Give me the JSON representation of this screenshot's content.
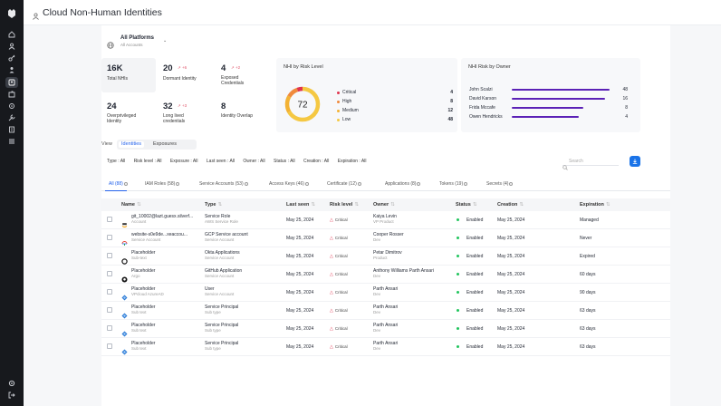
{
  "app": {
    "title": "Cloud Non-Human Identities"
  },
  "platform": {
    "name": "All Platforms",
    "sub": "All Accounts"
  },
  "stats": [
    {
      "value": "16K",
      "label": "Total NHIs",
      "trend": ""
    },
    {
      "value": "20",
      "label": "Dormant Identity",
      "trend": "+6"
    },
    {
      "value": "4",
      "label": "Exposed Credentials",
      "trend": "+2"
    },
    {
      "value": "24",
      "label": "Overprivileged Identity",
      "trend": ""
    },
    {
      "value": "32",
      "label": "Long lived credentials",
      "trend": "+3"
    },
    {
      "value": "8",
      "label": "Identity Overlap",
      "trend": ""
    }
  ],
  "risk_chart": {
    "title": "NHI by Risk Level",
    "center_value": "72",
    "levels": [
      {
        "label": "Critical",
        "value": "4",
        "color": "#e0344e"
      },
      {
        "label": "High",
        "value": "8",
        "color": "#f08a3c"
      },
      {
        "label": "Medium",
        "value": "12",
        "color": "#f3b234"
      },
      {
        "label": "Low",
        "value": "48",
        "color": "#f5c842"
      }
    ]
  },
  "owner_chart": {
    "title": "NHI Risk by Owner",
    "owners": [
      {
        "name": "John Scalzi",
        "value": "48"
      },
      {
        "name": "David Karson",
        "value": "16"
      },
      {
        "name": "Frida Mccafe",
        "value": "8"
      },
      {
        "name": "Owen Hendricks",
        "value": "4"
      }
    ]
  },
  "view": {
    "label": "View",
    "options": [
      "Identities",
      "Exposures"
    ]
  },
  "filters": [
    "Type : All",
    "Risk level : All",
    "Exposure : All",
    "Last seen : All",
    "Owner : All",
    "Status : All",
    "Creation : All",
    "Expiration : All"
  ],
  "search": {
    "placeholder": "Search"
  },
  "tabs": [
    "All (88)",
    "IAM Roles (58)",
    "Service Accounts (53)",
    "Access Keys (46)",
    "Certificate (12)",
    "Applications (8)",
    "Tokens (19)",
    "Secrets (4)"
  ],
  "table": {
    "columns": [
      "Name",
      "Type",
      "Last seen",
      "Risk level",
      "Owner",
      "Status",
      "Creation",
      "Expiration"
    ],
    "rows": [
      {
        "icon": "aws-icon",
        "name": "git_10002@lazt.guesx.silverf...",
        "name_sub": "Account",
        "type": "Service Role",
        "type_sub": "AWS Service Role",
        "last_seen": "May 25, 2024",
        "risk": "Critical",
        "owner": "Kaiya Levin",
        "owner_sub": "VP Product",
        "status": "Enabled",
        "creation": "May 25, 2024",
        "expiration": "Managed"
      },
      {
        "icon": "gcp-icon",
        "name": "website-s0e9de...xeaccou...",
        "name_sub": "Service Account",
        "type": "GCP Service account",
        "type_sub": "Service Account",
        "last_seen": "May 25, 2024",
        "risk": "Critical",
        "owner": "Cooper Rosser",
        "owner_sub": "Dev",
        "status": "Enabled",
        "creation": "May 25, 2024",
        "expiration": "Never"
      },
      {
        "icon": "okta-icon",
        "name": "Placeholder",
        "name_sub": "Sub-text",
        "type": "Okta Applications",
        "type_sub": "Service Account",
        "last_seen": "May 25, 2024",
        "risk": "Critical",
        "owner": "Petar Dimitrov",
        "owner_sub": "Product",
        "status": "Enabled",
        "creation": "May 25, 2024",
        "expiration": "Expired"
      },
      {
        "icon": "github-icon",
        "name": "Placeholder",
        "name_sub": "Argo",
        "type": "GitHub Application",
        "type_sub": "Service Account",
        "last_seen": "May 25, 2024",
        "risk": "Critical",
        "owner": "Anthony Williams Parth Ansari",
        "owner_sub": "Dev",
        "status": "Enabled",
        "creation": "May 25, 2024",
        "expiration": "60 days"
      },
      {
        "icon": "azure-icon",
        "name": "Placeholder",
        "name_sub": "VPcloud AzureAD",
        "type": "User",
        "type_sub": "Service Account",
        "last_seen": "May 25, 2024",
        "risk": "Critical",
        "owner": "Parth Ansari",
        "owner_sub": "Dev",
        "status": "Enabled",
        "creation": "May 25, 2024",
        "expiration": "90 days"
      },
      {
        "icon": "azure-icon",
        "name": "Placeholder",
        "name_sub": "Sub text",
        "type": "Service Principal",
        "type_sub": "Sub type",
        "last_seen": "May 25, 2024",
        "risk": "Critical",
        "owner": "Parth Ansari",
        "owner_sub": "Dev",
        "status": "Enabled",
        "creation": "May 25, 2024",
        "expiration": "63 days"
      },
      {
        "icon": "azure-icon",
        "name": "Placeholder",
        "name_sub": "Sub text",
        "type": "Service Principal",
        "type_sub": "Sub type",
        "last_seen": "May 25, 2024",
        "risk": "Critical",
        "owner": "Parth Ansari",
        "owner_sub": "Dev",
        "status": "Enabled",
        "creation": "May 25, 2024",
        "expiration": "63 days"
      },
      {
        "icon": "azure-icon",
        "name": "Placeholder",
        "name_sub": "Sub text",
        "type": "Service Principal",
        "type_sub": "Sub type",
        "last_seen": "May 25, 2024",
        "risk": "Critical",
        "owner": "Parth Ansari",
        "owner_sub": "Dev",
        "status": "Enabled",
        "creation": "May 25, 2024",
        "expiration": "63 days"
      }
    ]
  },
  "colors": {
    "accent": "#2563eb",
    "sidebar": "#17191d",
    "bar": "#5b21b6",
    "enabled": "#22c55e",
    "critical": "#e0344e"
  }
}
